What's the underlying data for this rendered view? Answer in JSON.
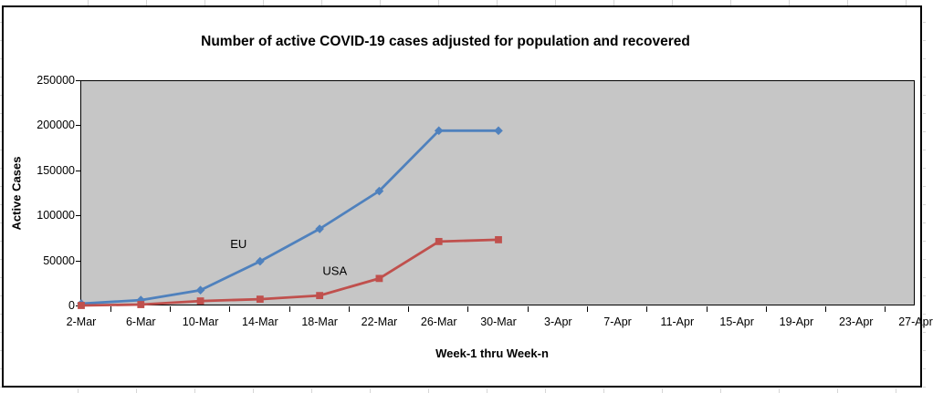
{
  "page": {
    "description": "Excel chart object on a worksheet",
    "sheet_gridline_color": "#d6d6d6"
  },
  "chart_data": {
    "type": "line",
    "title": "Number of active COVID-19 cases adjusted for population and recovered",
    "xlabel": "Week-1 thru Week-n",
    "ylabel": "Active Cases",
    "categories": [
      "2-Mar",
      "6-Mar",
      "10-Mar",
      "14-Mar",
      "18-Mar",
      "22-Mar",
      "26-Mar",
      "30-Mar",
      "3-Apr",
      "7-Apr",
      "11-Apr",
      "15-Apr",
      "19-Apr",
      "23-Apr",
      "27-Apr"
    ],
    "series": [
      {
        "name": "EU",
        "color": "#4F81BD",
        "marker": "diamond",
        "values": [
          3000,
          7000,
          18000,
          50000,
          86000,
          128000,
          195000,
          195000
        ],
        "label": {
          "text": "EU",
          "x_index": 2.5,
          "y_value": 65000
        }
      },
      {
        "name": "USA",
        "color": "#C0504D",
        "marker": "square",
        "values": [
          1000,
          2000,
          6000,
          8000,
          12000,
          31000,
          72000,
          74000
        ],
        "label": {
          "text": "USA",
          "x_index": 4.05,
          "y_value": 35000
        }
      }
    ],
    "ylim": [
      0,
      250000
    ],
    "y_tick_step": 50000,
    "grid": "horizontal-only",
    "plot_background": "#C6C6C6",
    "axis_color": "#000000",
    "legend_position": "none (inline series labels)"
  }
}
